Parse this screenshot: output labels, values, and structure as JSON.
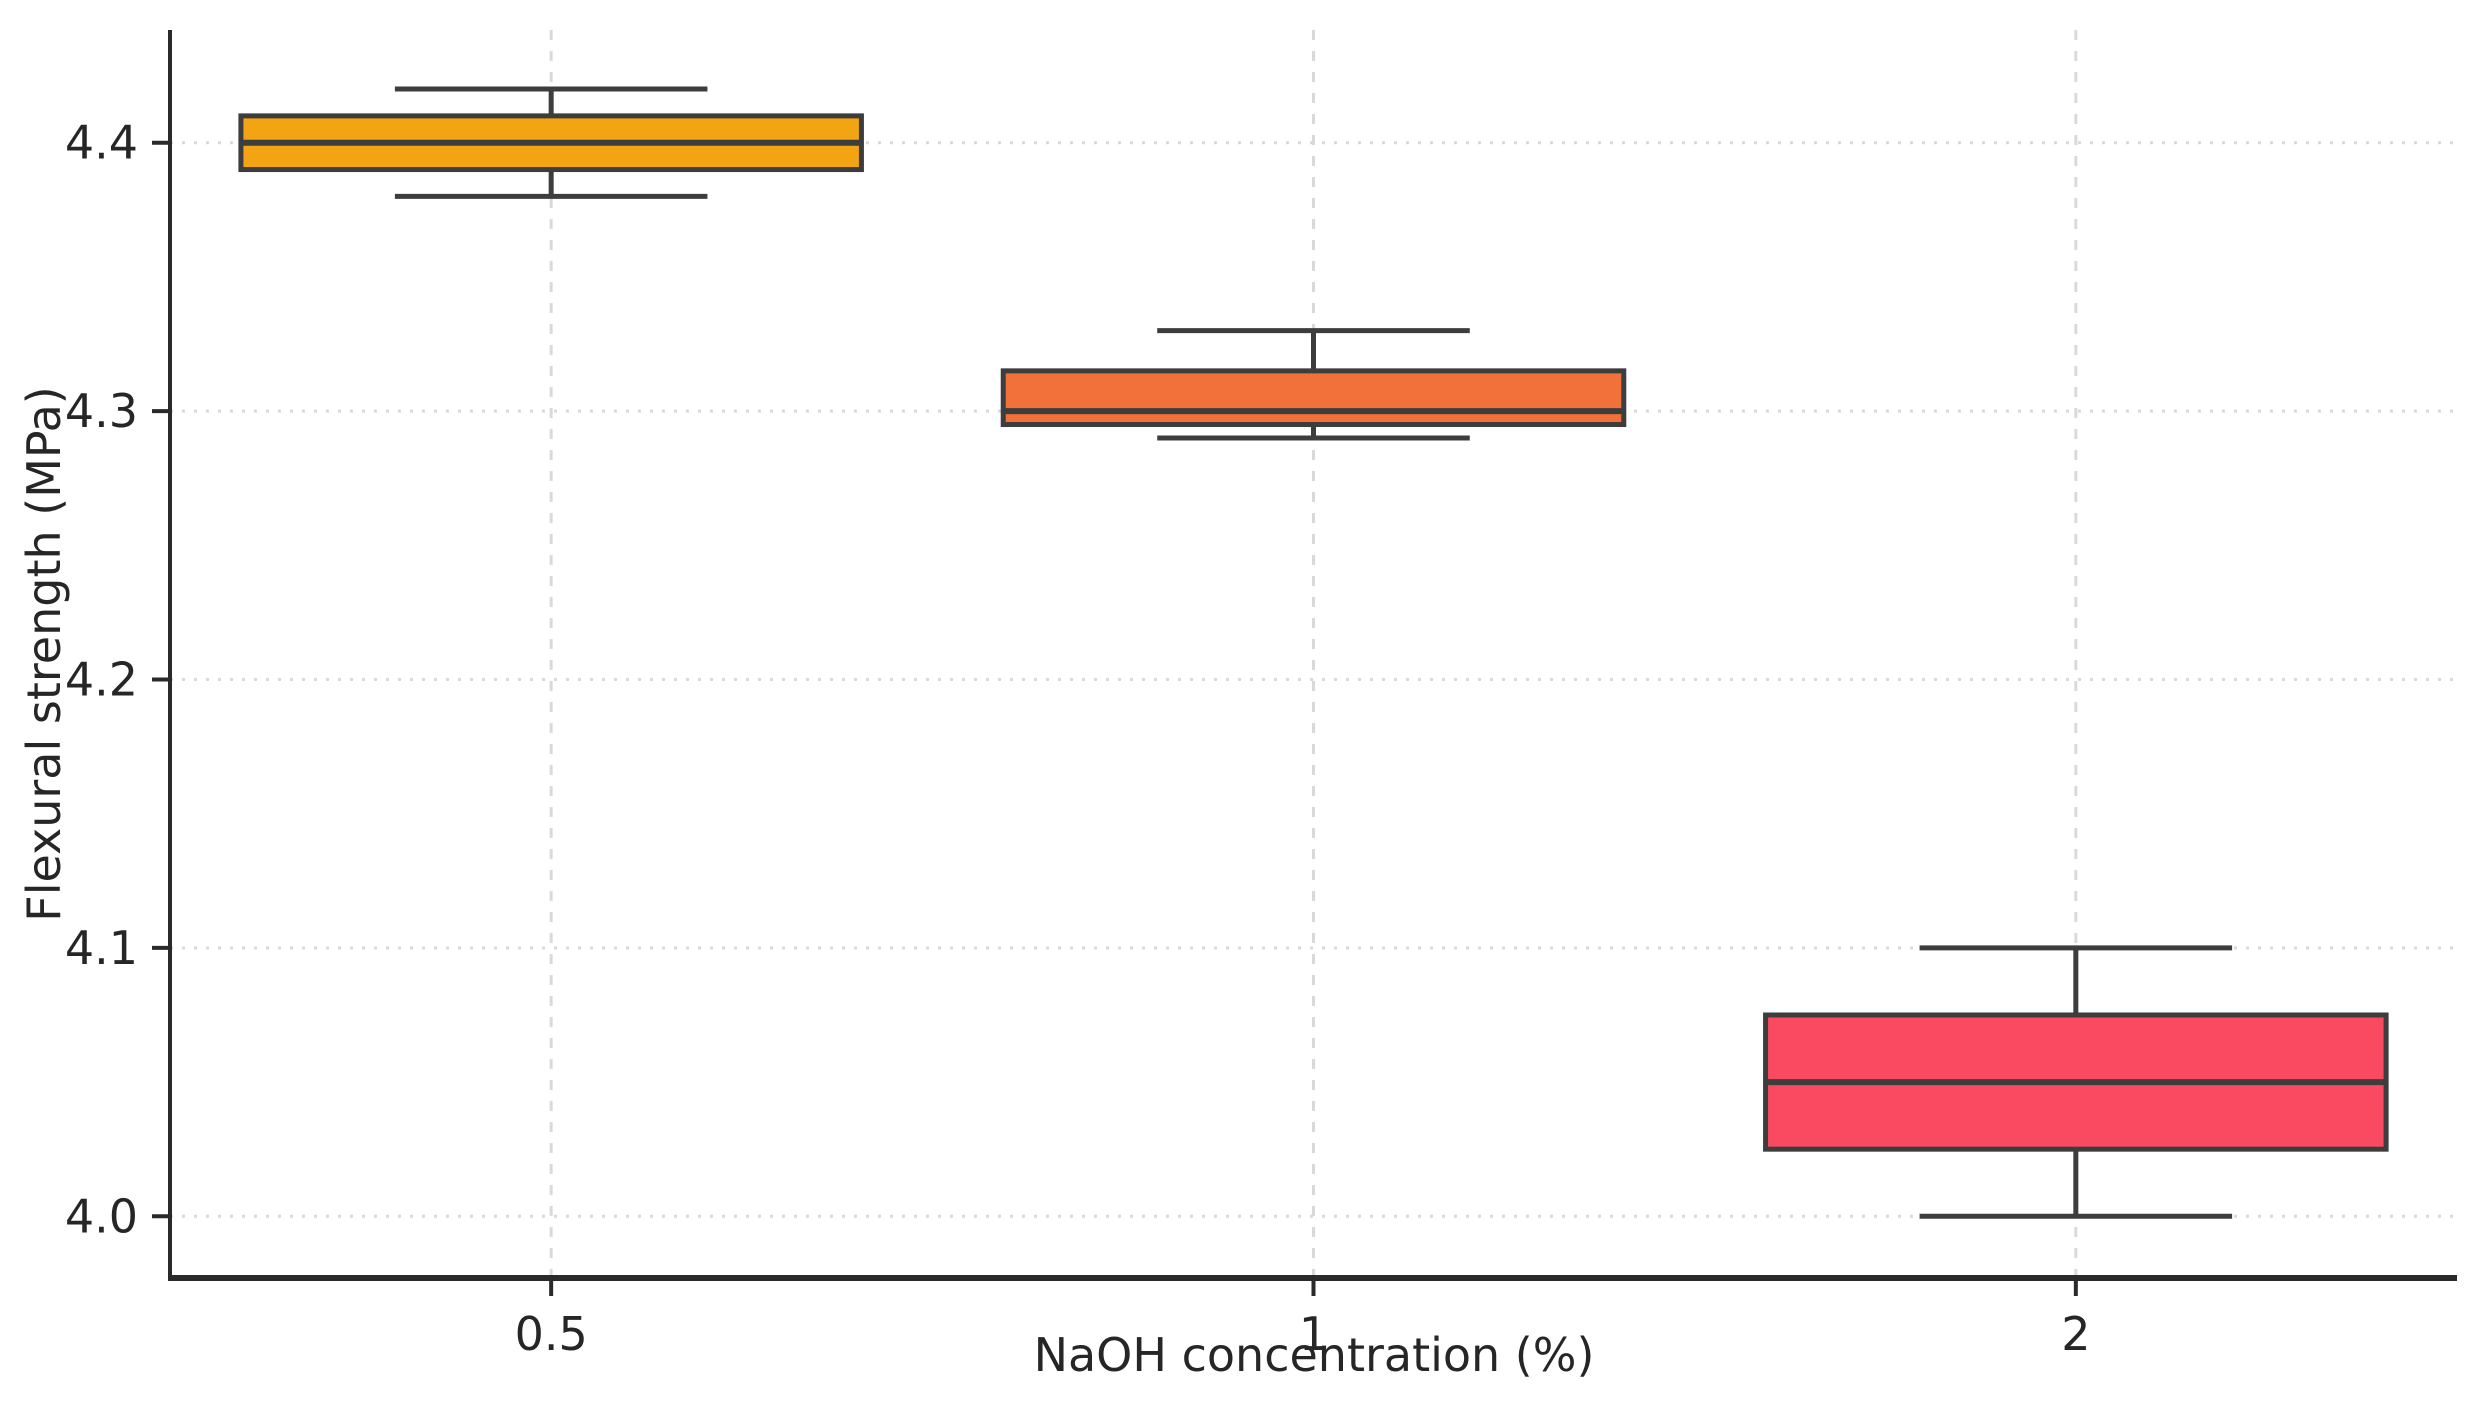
{
  "page": {
    "background_color": "#ffffff",
    "text_color": "#262626"
  },
  "chart_data": {
    "type": "box",
    "title": "",
    "xlabel": "NaOH concentration (%)",
    "ylabel": "Flexural strength (MPa)",
    "categories": [
      "0.5",
      "1",
      "2"
    ],
    "y_ticks": [
      4.0,
      4.1,
      4.2,
      4.3,
      4.4
    ],
    "y_tick_labels": [
      "4.0",
      "4.1",
      "4.2",
      "4.3",
      "4.4"
    ],
    "ylim": [
      3.977,
      4.442
    ],
    "grid": true,
    "legend_position": "none",
    "boxes": [
      {
        "category": "0.5",
        "whisker_low": 4.38,
        "q1": 4.39,
        "median": 4.4,
        "q3": 4.41,
        "whisker_high": 4.42,
        "fill_color": "#F2A413"
      },
      {
        "category": "1",
        "whisker_low": 4.29,
        "q1": 4.295,
        "median": 4.3,
        "q3": 4.315,
        "whisker_high": 4.33,
        "fill_color": "#F2703A"
      },
      {
        "category": "2",
        "whisker_low": 4.0,
        "q1": 4.025,
        "median": 4.05,
        "q3": 4.075,
        "whisker_high": 4.1,
        "fill_color": "#FA4A62"
      }
    ],
    "style": {
      "box_edge_color": "#3d3d3d",
      "median_color": "#3d3d3d",
      "whisker_color": "#3d3d3d",
      "grid_color": "#d9d9d9",
      "spine_color": "#2a2a2a",
      "tick_label_color": "#262626"
    }
  }
}
